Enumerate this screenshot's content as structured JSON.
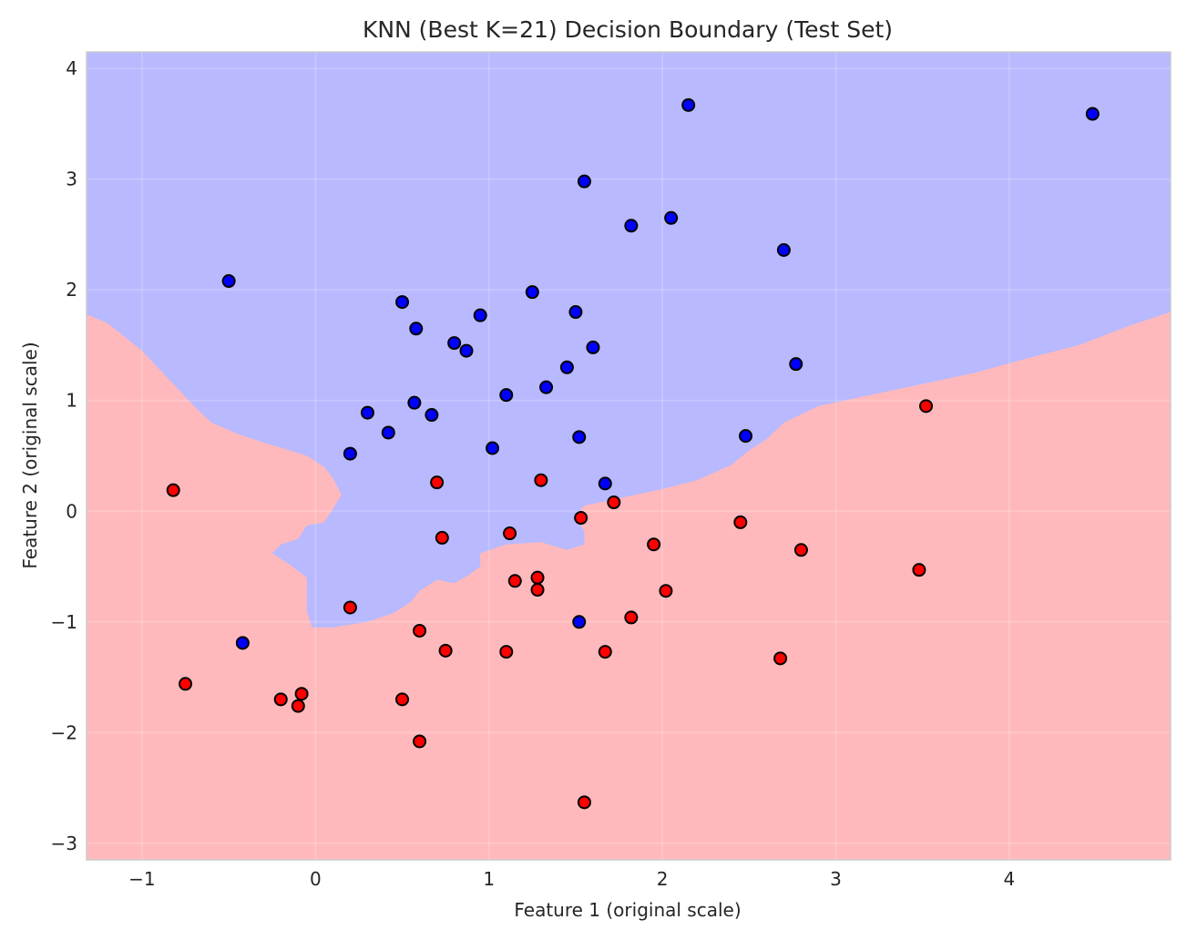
{
  "chart_data": {
    "type": "scatter",
    "title": "KNN (Best K=21) Decision Boundary (Test Set)",
    "xlabel": "Feature 1 (original scale)",
    "ylabel": "Feature 2 (original scale)",
    "xlim": [
      -1.32,
      4.93
    ],
    "ylim": [
      -3.15,
      4.15
    ],
    "xticks": [
      -1,
      0,
      1,
      2,
      3,
      4
    ],
    "yticks": [
      -3,
      -2,
      -1,
      0,
      1,
      2,
      3,
      4
    ],
    "xtick_labels": [
      "−1",
      "0",
      "1",
      "2",
      "3",
      "4"
    ],
    "ytick_labels": [
      "−3",
      "−2",
      "−1",
      "0",
      "1",
      "2",
      "3",
      "4"
    ],
    "grid": true,
    "colors": {
      "region_class_0": "#ffb9bc",
      "region_class_1": "#b8b9ff",
      "point_class_0": "#ff0000",
      "point_class_1": "#0000ff",
      "point_edge": "#000000",
      "grid": "#e6e6f0",
      "frame": "#cccccc"
    },
    "decision_boundary": {
      "upper_region_class": 1,
      "lower_region_class": 0,
      "boundary": [
        [
          -1.32,
          1.78
        ],
        [
          -1.2,
          1.7
        ],
        [
          -1.0,
          1.45
        ],
        [
          -0.85,
          1.2
        ],
        [
          -0.7,
          0.95
        ],
        [
          -0.6,
          0.8
        ],
        [
          -0.45,
          0.7
        ],
        [
          -0.3,
          0.62
        ],
        [
          -0.15,
          0.55
        ],
        [
          -0.05,
          0.5
        ],
        [
          0.05,
          0.4
        ],
        [
          0.1,
          0.3
        ],
        [
          0.15,
          0.15
        ],
        [
          0.1,
          0.02
        ],
        [
          0.05,
          -0.1
        ],
        [
          -0.05,
          -0.13
        ],
        [
          -0.1,
          -0.25
        ],
        [
          -0.2,
          -0.3
        ],
        [
          -0.25,
          -0.38
        ],
        [
          -0.15,
          -0.48
        ],
        [
          -0.05,
          -0.6
        ],
        [
          -0.05,
          -0.75
        ],
        [
          -0.05,
          -0.9
        ],
        [
          -0.02,
          -1.05
        ],
        [
          0.1,
          -1.05
        ],
        [
          0.3,
          -1.0
        ],
        [
          0.45,
          -0.92
        ],
        [
          0.55,
          -0.82
        ],
        [
          0.6,
          -0.72
        ],
        [
          0.7,
          -0.62
        ],
        [
          0.8,
          -0.65
        ],
        [
          0.88,
          -0.58
        ],
        [
          0.95,
          -0.5
        ],
        [
          0.95,
          -0.38
        ],
        [
          1.1,
          -0.3
        ],
        [
          1.3,
          -0.28
        ],
        [
          1.45,
          -0.35
        ],
        [
          1.55,
          -0.3
        ],
        [
          1.55,
          -0.18
        ],
        [
          1.5,
          -0.05
        ],
        [
          1.55,
          0.05
        ],
        [
          1.7,
          0.1
        ],
        [
          1.85,
          0.15
        ],
        [
          2.0,
          0.2
        ],
        [
          2.2,
          0.28
        ],
        [
          2.4,
          0.42
        ],
        [
          2.5,
          0.55
        ],
        [
          2.6,
          0.65
        ],
        [
          2.7,
          0.8
        ],
        [
          2.9,
          0.95
        ],
        [
          3.2,
          1.05
        ],
        [
          3.5,
          1.15
        ],
        [
          3.8,
          1.25
        ],
        [
          4.1,
          1.38
        ],
        [
          4.4,
          1.5
        ],
        [
          4.7,
          1.68
        ],
        [
          4.93,
          1.8
        ]
      ]
    },
    "series": [
      {
        "class": 1,
        "points": [
          [
            2.15,
            3.67
          ],
          [
            4.48,
            3.59
          ],
          [
            1.55,
            2.98
          ],
          [
            2.05,
            2.65
          ],
          [
            1.82,
            2.58
          ],
          [
            2.7,
            2.36
          ],
          [
            -0.5,
            2.08
          ],
          [
            1.25,
            1.98
          ],
          [
            0.5,
            1.89
          ],
          [
            1.5,
            1.8
          ],
          [
            0.95,
            1.77
          ],
          [
            0.58,
            1.65
          ],
          [
            1.6,
            1.48
          ],
          [
            0.8,
            1.52
          ],
          [
            0.87,
            1.45
          ],
          [
            2.77,
            1.33
          ],
          [
            1.45,
            1.3
          ],
          [
            1.33,
            1.12
          ],
          [
            1.1,
            1.05
          ],
          [
            0.57,
            0.98
          ],
          [
            0.3,
            0.89
          ],
          [
            0.67,
            0.87
          ],
          [
            0.42,
            0.71
          ],
          [
            1.52,
            0.67
          ],
          [
            2.48,
            0.68
          ],
          [
            1.02,
            0.57
          ],
          [
            0.2,
            0.52
          ],
          [
            1.67,
            0.25
          ],
          [
            1.52,
            -1.0
          ],
          [
            -0.42,
            -1.19
          ]
        ]
      },
      {
        "class": 0,
        "points": [
          [
            3.52,
            0.95
          ],
          [
            0.7,
            0.26
          ],
          [
            1.3,
            0.28
          ],
          [
            -0.82,
            0.19
          ],
          [
            1.72,
            0.08
          ],
          [
            1.53,
            -0.06
          ],
          [
            2.45,
            -0.1
          ],
          [
            1.12,
            -0.2
          ],
          [
            0.73,
            -0.24
          ],
          [
            1.95,
            -0.3
          ],
          [
            2.8,
            -0.35
          ],
          [
            3.48,
            -0.53
          ],
          [
            1.28,
            -0.6
          ],
          [
            1.15,
            -0.63
          ],
          [
            1.28,
            -0.71
          ],
          [
            2.02,
            -0.72
          ],
          [
            0.2,
            -0.87
          ],
          [
            1.82,
            -0.96
          ],
          [
            0.6,
            -1.08
          ],
          [
            0.75,
            -1.26
          ],
          [
            1.1,
            -1.27
          ],
          [
            1.67,
            -1.27
          ],
          [
            2.68,
            -1.33
          ],
          [
            -0.75,
            -1.56
          ],
          [
            -0.2,
            -1.7
          ],
          [
            -0.08,
            -1.65
          ],
          [
            -0.1,
            -1.76
          ],
          [
            0.5,
            -1.7
          ],
          [
            0.6,
            -2.08
          ],
          [
            1.55,
            -2.63
          ]
        ]
      }
    ]
  }
}
